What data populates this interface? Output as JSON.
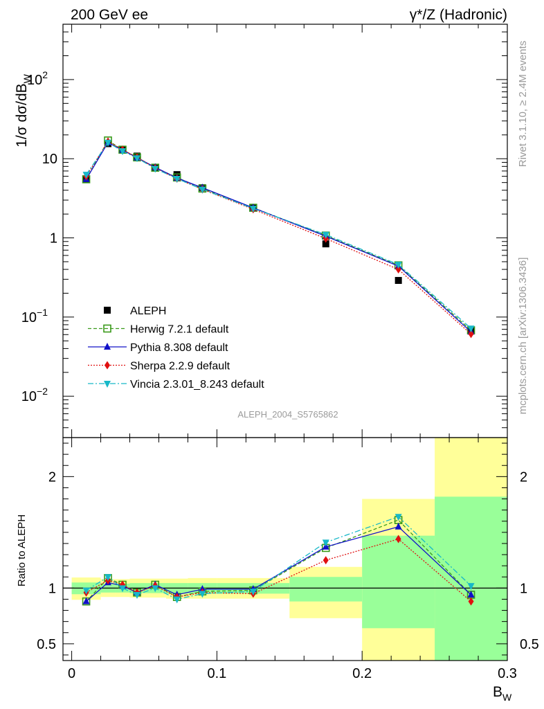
{
  "header": {
    "left": "200 GeV ee",
    "right": "γ*/Z (Hadronic)"
  },
  "side": {
    "rivet": "Rivet 3.1.10, ≥ 2.4M events",
    "mcplots": "mcplots.cern.ch [arXiv:1306.3436]"
  },
  "watermark": "ALEPH_2004_S5765862",
  "colors": {
    "ALEPH": "#000000",
    "Herwig": "#3a9a1a",
    "Pythia": "#1010c8",
    "Sherpa": "#e01010",
    "Vincia": "#17b8c8",
    "band_yellow": "#ffff99",
    "band_green": "#99ff99"
  },
  "chart_data": [
    {
      "type": "line",
      "panel": "main",
      "ylabel": "1/σ  dσ/dB",
      "ylabel_sub": "W",
      "yscale": "log",
      "ylim": [
        0.003,
        500
      ],
      "xlim": [
        -0.006,
        0.3
      ],
      "yticks": [
        {
          "v": 0.01,
          "base": "10",
          "exp": "−2"
        },
        {
          "v": 0.1,
          "base": "10",
          "exp": "−1"
        },
        {
          "v": 1,
          "base": "1",
          "exp": ""
        },
        {
          "v": 10,
          "base": "10",
          "exp": ""
        },
        {
          "v": 100,
          "base": "10",
          "exp": "2"
        }
      ],
      "legend_position": "lower-left",
      "x": [
        0.01,
        0.025,
        0.035,
        0.045,
        0.0575,
        0.0725,
        0.09,
        0.125,
        0.175,
        0.225,
        0.275
      ],
      "series": [
        {
          "name": "ALEPH",
          "key": "ALEPH",
          "marker": "square",
          "line": "none",
          "values": [
            5.5,
            15.5,
            12.8,
            10.8,
            7.6,
            6.3,
            4.3,
            2.4,
            0.84,
            0.29,
            0.068
          ]
        },
        {
          "name": "Herwig 7.2.1 default",
          "key": "Herwig",
          "marker": "open-square",
          "line": "dashed",
          "values": [
            5.5,
            17.0,
            13.0,
            10.4,
            7.7,
            5.8,
            4.2,
            2.4,
            1.07,
            0.45,
            0.068
          ]
        },
        {
          "name": "Pythia 8.308 default",
          "key": "Pythia",
          "marker": "triangle-up",
          "line": "solid",
          "values": [
            5.5,
            16.0,
            12.9,
            10.3,
            7.8,
            5.7,
            4.3,
            2.4,
            1.05,
            0.44,
            0.065
          ]
        },
        {
          "name": "Sherpa 2.2.9 default",
          "key": "Sherpa",
          "marker": "diamond",
          "line": "dotted",
          "values": [
            6.0,
            16.5,
            13.0,
            10.4,
            7.6,
            5.6,
            4.1,
            2.3,
            0.98,
            0.4,
            0.061
          ]
        },
        {
          "name": "Vincia 2.3.01_8.243 default",
          "key": "Vincia",
          "marker": "triangle-down",
          "line": "dashdot",
          "values": [
            6.3,
            16.0,
            12.5,
            10.2,
            7.5,
            5.6,
            4.1,
            2.35,
            1.1,
            0.46,
            0.072
          ]
        }
      ]
    },
    {
      "type": "line",
      "panel": "ratio",
      "ylabel": "Ratio to ALEPH",
      "xlabel": "B",
      "xlabel_sub": "W",
      "ylim": [
        0.35,
        2.35
      ],
      "xlim": [
        -0.006,
        0.3
      ],
      "yticks": [
        0.5,
        1,
        2
      ],
      "ytick_labels": [
        "0.5",
        "1",
        "2"
      ],
      "xticks": [
        0,
        0.1,
        0.2,
        0.3
      ],
      "xtick_labels": [
        "0",
        "0.1",
        "0.2",
        "0.3"
      ],
      "bands": [
        {
          "x0": 0.0,
          "x1": 0.02,
          "yellow": [
            0.895,
            1.095
          ],
          "green": [
            0.945,
            1.05
          ]
        },
        {
          "x0": 0.02,
          "x1": 0.03,
          "yellow": [
            0.92,
            1.08
          ],
          "green": [
            0.96,
            1.04
          ]
        },
        {
          "x0": 0.03,
          "x1": 0.04,
          "yellow": [
            0.92,
            1.08
          ],
          "green": [
            0.96,
            1.04
          ]
        },
        {
          "x0": 0.04,
          "x1": 0.05,
          "yellow": [
            0.915,
            1.085
          ],
          "green": [
            0.955,
            1.045
          ]
        },
        {
          "x0": 0.05,
          "x1": 0.065,
          "yellow": [
            0.915,
            1.085
          ],
          "green": [
            0.955,
            1.045
          ]
        },
        {
          "x0": 0.065,
          "x1": 0.08,
          "yellow": [
            0.905,
            1.085
          ],
          "green": [
            0.95,
            1.045
          ]
        },
        {
          "x0": 0.08,
          "x1": 0.1,
          "yellow": [
            0.905,
            1.09
          ],
          "green": [
            0.95,
            1.045
          ]
        },
        {
          "x0": 0.1,
          "x1": 0.15,
          "yellow": [
            0.905,
            1.09
          ],
          "green": [
            0.95,
            1.045
          ]
        },
        {
          "x0": 0.15,
          "x1": 0.2,
          "yellow": [
            0.73,
            1.19
          ],
          "green": [
            0.88,
            1.1
          ]
        },
        {
          "x0": 0.2,
          "x1": 0.25,
          "yellow": [
            0.35,
            1.8
          ],
          "green": [
            0.64,
            1.47
          ]
        },
        {
          "x0": 0.25,
          "x1": 0.3,
          "yellow": [
            0.35,
            2.35
          ],
          "green": [
            0.35,
            1.82
          ]
        }
      ],
      "x": [
        0.01,
        0.025,
        0.035,
        0.045,
        0.0575,
        0.0725,
        0.09,
        0.125,
        0.175,
        0.225,
        0.275
      ],
      "series": [
        {
          "name": "Herwig 7.2.1 default",
          "key": "Herwig",
          "marker": "open-square",
          "line": "dashed",
          "values": [
            0.88,
            1.09,
            1.03,
            0.96,
            1.03,
            0.92,
            0.97,
            0.98,
            1.36,
            1.61,
            0.94
          ]
        },
        {
          "name": "Pythia 8.308 default",
          "key": "Pythia",
          "marker": "triangle-up",
          "line": "solid",
          "values": [
            0.88,
            1.05,
            1.02,
            0.96,
            1.03,
            0.94,
            0.99,
            0.99,
            1.37,
            1.55,
            0.94
          ]
        },
        {
          "name": "Sherpa 2.2.9 default",
          "key": "Sherpa",
          "marker": "diamond",
          "line": "dotted",
          "values": [
            0.96,
            1.07,
            1.03,
            0.96,
            1.02,
            0.92,
            0.96,
            0.95,
            1.25,
            1.44,
            0.88
          ]
        },
        {
          "name": "Vincia 2.3.01_8.243 default",
          "key": "Vincia",
          "marker": "triangle-down",
          "line": "dashdot",
          "values": [
            0.98,
            1.1,
            1.0,
            0.94,
            1.0,
            0.9,
            0.95,
            0.97,
            1.41,
            1.64,
            1.02
          ]
        }
      ]
    }
  ]
}
